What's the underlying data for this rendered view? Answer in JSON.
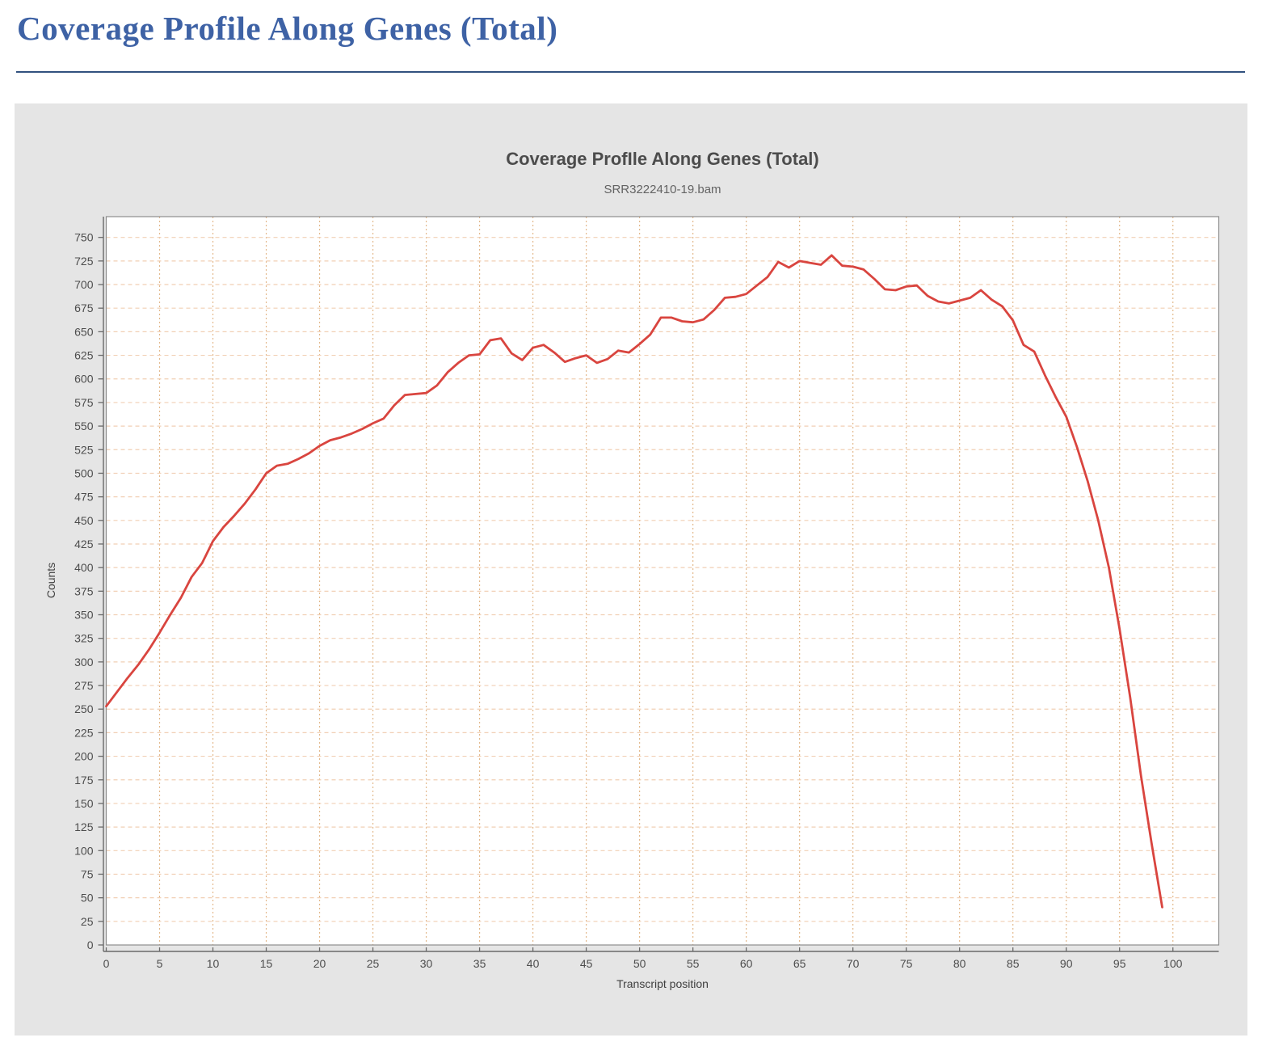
{
  "page": {
    "title": "Coverage Profile Along Genes (Total)",
    "title_color": "#3e62a5",
    "rule_color": "#31517f"
  },
  "chart": {
    "title": "Coverage ProfIle Along Genes (Total)",
    "subtitle": "SRR3222410-19.bam",
    "panel_background": "#e5e5e5",
    "plot_background": "#ffffff"
  },
  "chart_data": {
    "type": "line",
    "title": "Coverage ProfIle Along Genes (Total)",
    "subtitle": "SRR3222410-19.bam",
    "xlabel": "Transcript position",
    "ylabel": "Counts",
    "xlim": [
      0,
      104.3
    ],
    "ylim": [
      0,
      772
    ],
    "x_ticks": [
      0,
      5,
      10,
      15,
      20,
      25,
      30,
      35,
      40,
      45,
      50,
      55,
      60,
      65,
      70,
      75,
      80,
      85,
      90,
      95,
      100
    ],
    "y_ticks": [
      0,
      25,
      50,
      75,
      100,
      125,
      150,
      175,
      200,
      225,
      250,
      275,
      300,
      325,
      350,
      375,
      400,
      425,
      450,
      475,
      500,
      525,
      550,
      575,
      600,
      625,
      650,
      675,
      700,
      725,
      750
    ],
    "grid_on": true,
    "legend_position": "none",
    "line_color": "#d9453f",
    "grid_vertical_color": "#e3b98c",
    "grid_horizontal_color": "#f1cfb4",
    "axis_color": "#6a6a6a",
    "plot_border_color": "#8e8e8e",
    "tick_label_color": "#4d4d4d",
    "series": [
      {
        "name": "SRR3222410-19.bam",
        "color": "#d9453f",
        "x_start": 0,
        "x_step": 1,
        "values": [
          253,
          268,
          283,
          297,
          313,
          331,
          350,
          368,
          390,
          405,
          428,
          443,
          455,
          468,
          483,
          500,
          508,
          510,
          515,
          521,
          529,
          535,
          538,
          542,
          547,
          553,
          558,
          572,
          583,
          584,
          585,
          593,
          607,
          617,
          625,
          626,
          641,
          643,
          627,
          620,
          633,
          636,
          628,
          618,
          622,
          625,
          617,
          621,
          630,
          628,
          637,
          647,
          665,
          665,
          661,
          660,
          663,
          673,
          686,
          687,
          690,
          699,
          708,
          724,
          718,
          725,
          723,
          721,
          731,
          720,
          719,
          716,
          706,
          695,
          694,
          698,
          699,
          688,
          682,
          680,
          683,
          686,
          694,
          684,
          677,
          662,
          636,
          629,
          604,
          581,
          560,
          528,
          492,
          450,
          400,
          335,
          262,
          180,
          108,
          40
        ]
      }
    ]
  }
}
